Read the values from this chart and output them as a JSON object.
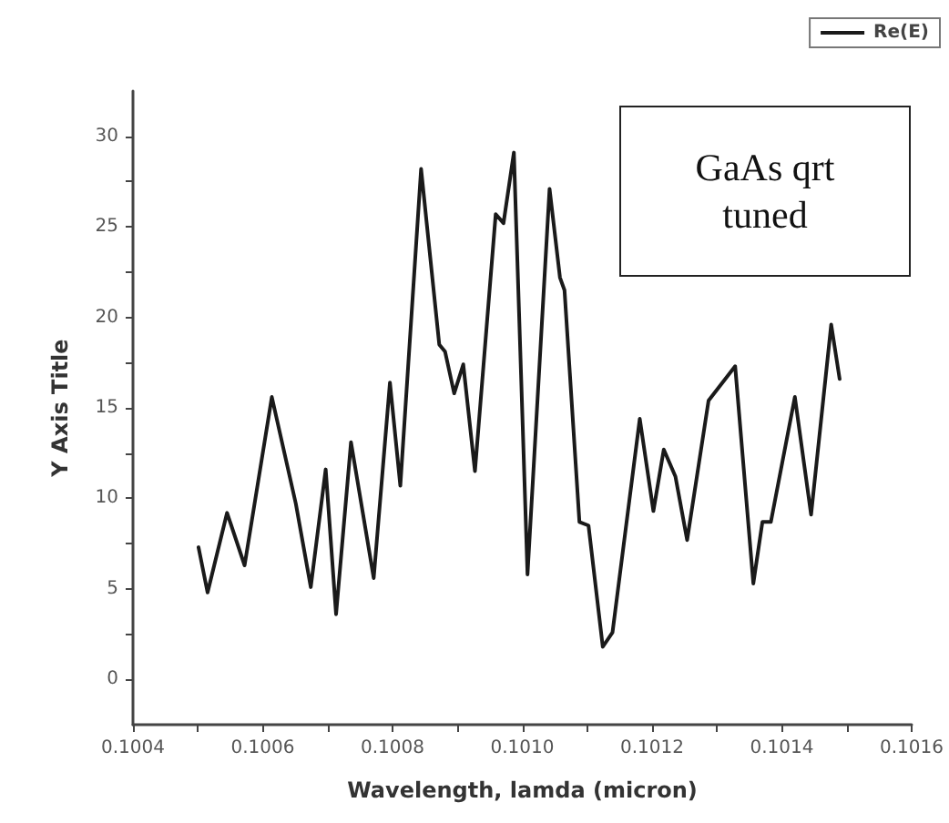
{
  "chart_data": {
    "type": "line",
    "xlabel": "Wavelength, lamda (micron)",
    "ylabel": "Y Axis Title",
    "annotations": [
      "GaAs qrt tuned"
    ],
    "x": [
      0.100501,
      0.100515,
      0.100545,
      0.100572,
      0.100614,
      0.100651,
      0.100674,
      0.100697,
      0.100713,
      0.100736,
      0.100771,
      0.100796,
      0.100812,
      0.100844,
      0.100872,
      0.100881,
      0.100895,
      0.100909,
      0.100927,
      0.100959,
      0.100971,
      0.100987,
      0.101008,
      0.101042,
      0.101058,
      0.101065,
      0.101088,
      0.101102,
      0.101124,
      0.101139,
      0.101181,
      0.101202,
      0.101218,
      0.101236,
      0.101254,
      0.101287,
      0.101328,
      0.101356,
      0.10137,
      0.101383,
      0.10142,
      0.101445,
      0.101476,
      0.101489
    ],
    "series": [
      {
        "name": "Re(E)",
        "color": "#1a1a1a",
        "values": [
          7.3,
          4.8,
          9.2,
          6.3,
          15.6,
          9.7,
          5.1,
          11.6,
          3.6,
          13.1,
          5.6,
          16.4,
          10.7,
          28.2,
          18.5,
          18.1,
          15.8,
          17.4,
          11.5,
          25.7,
          25.2,
          29.1,
          5.8,
          27.1,
          22.2,
          21.5,
          8.7,
          8.5,
          1.8,
          2.6,
          14.4,
          9.3,
          12.7,
          11.2,
          7.7,
          15.4,
          17.3,
          5.3,
          8.7,
          8.7,
          15.6,
          9.1,
          19.6,
          16.6
        ]
      }
    ],
    "xlim": [
      0.1004,
      0.1016
    ],
    "xticks": [
      0.1004,
      {
        "value": 0.1005,
        "label": null
      },
      0.1006,
      {
        "value": 0.1007,
        "label": null
      },
      0.1008,
      {
        "value": 0.1009,
        "label": null
      },
      {
        "value": 0.101,
        "label": "0.1010"
      },
      {
        "value": 0.1011,
        "label": null
      },
      0.1012,
      {
        "value": 0.1013,
        "label": null
      },
      0.1014,
      {
        "value": 0.1015,
        "label": null
      },
      0.1016
    ],
    "ylim": [
      -2.5,
      32.5
    ],
    "yticks": [
      0,
      {
        "value": 2.5,
        "label": null
      },
      5,
      {
        "value": 7.5,
        "label": null
      },
      10,
      {
        "value": 12.5,
        "label": null
      },
      15,
      {
        "value": 17.5,
        "label": null
      },
      20,
      {
        "value": 22.5,
        "label": null
      },
      25,
      {
        "value": 27.5,
        "label": null
      },
      30
    ],
    "grid": false,
    "legend": "top right",
    "marker": "none",
    "line_style": "solid"
  }
}
